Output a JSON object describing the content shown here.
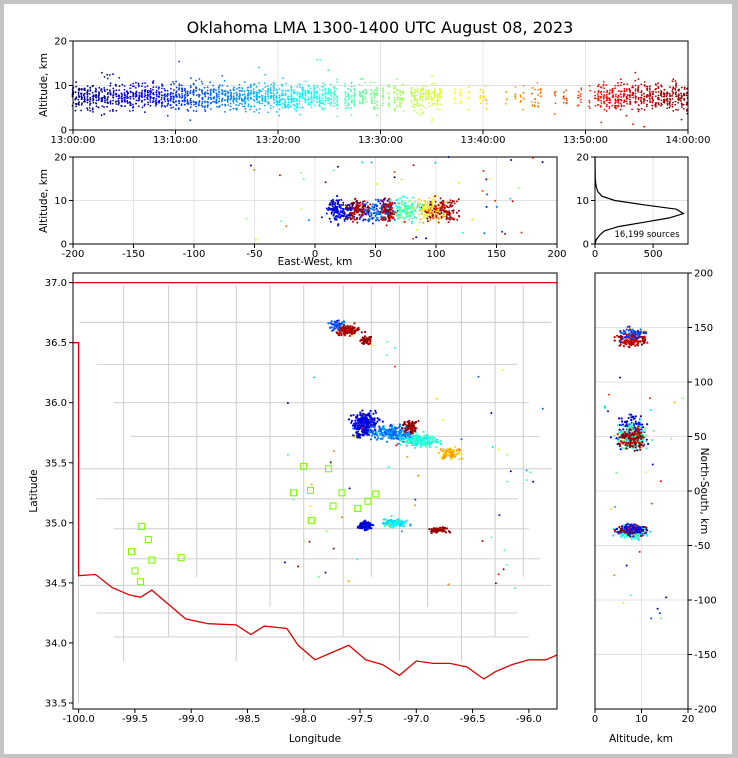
{
  "title": "Oklahoma LMA 1300-1400 UTC August 08, 2023",
  "colors": {
    "frame_border": "#c4c4c4",
    "state_border": "#e00000",
    "county_lines": "#c8c8c8",
    "station_marker": "#7cfc00",
    "grid": "#d8d8d8"
  },
  "chart_data": [
    {
      "id": "time_height",
      "type": "scatter",
      "ylabel": "Altitude, km",
      "xlabel": "",
      "xlim": [
        "13:00:00",
        "14:00:00"
      ],
      "ylim": [
        0,
        20
      ],
      "xticks": [
        "13:00:00",
        "13:10:00",
        "13:20:00",
        "13:30:00",
        "13:40:00",
        "13:50:00",
        "14:00:00"
      ],
      "yticks": [
        0,
        10,
        20
      ],
      "colormap": "jet by time",
      "note": "points colored by time of source"
    },
    {
      "id": "ew_altitude",
      "type": "scatter",
      "xlabel": "East-West, km",
      "ylabel": "Altitude, km",
      "xlim": [
        -200,
        200
      ],
      "ylim": [
        0,
        20
      ],
      "xticks": [
        -200,
        -150,
        -100,
        -50,
        0,
        50,
        100,
        150,
        200
      ],
      "yticks": [
        0,
        10,
        20
      ]
    },
    {
      "id": "altitude_histogram",
      "type": "line",
      "xlim": [
        0,
        800
      ],
      "ylim": [
        0,
        20
      ],
      "xticks": [
        0,
        500
      ],
      "yticks": [
        0,
        10,
        20
      ],
      "annotation": "16,199 sources",
      "x": [
        0,
        10,
        40,
        80,
        200,
        420,
        640,
        760,
        700,
        420,
        170,
        60,
        25,
        12,
        6,
        3,
        2,
        1,
        0
      ],
      "y": [
        0,
        1,
        2,
        3,
        4,
        5,
        6,
        7,
        8,
        9,
        10,
        11,
        12,
        13,
        14,
        15,
        16,
        18,
        20
      ]
    },
    {
      "id": "plan_view",
      "type": "scatter",
      "xlabel": "Longitude",
      "ylabel": "Latitude",
      "xlim": [
        -100.05,
        -95.75
      ],
      "ylim": [
        33.45,
        37.08
      ],
      "xticks": [
        "-100.0",
        "-99.5",
        "-99.0",
        "-98.5",
        "-98.0",
        "-97.5",
        "-97.0",
        "-96.5",
        "-96.0"
      ],
      "yticks": [
        "33.5",
        "34.0",
        "34.5",
        "35.0",
        "35.5",
        "36.0",
        "36.5",
        "37.0"
      ],
      "stations": [
        [
          -99.44,
          34.97
        ],
        [
          -99.38,
          34.86
        ],
        [
          -99.53,
          34.76
        ],
        [
          -99.35,
          34.69
        ],
        [
          -99.5,
          34.6
        ],
        [
          -99.45,
          34.51
        ],
        [
          -99.09,
          34.71
        ],
        [
          -98.0,
          35.47
        ],
        [
          -98.09,
          35.25
        ],
        [
          -97.94,
          35.27
        ],
        [
          -97.93,
          35.02
        ],
        [
          -97.78,
          35.45
        ],
        [
          -97.74,
          35.14
        ],
        [
          -97.66,
          35.25
        ],
        [
          -97.52,
          35.12
        ],
        [
          -97.43,
          35.18
        ],
        [
          -97.36,
          35.24
        ]
      ]
    },
    {
      "id": "ns_altitude",
      "type": "scatter",
      "xlabel": "Altitude, km",
      "ylabel": "North-South, km",
      "xlim": [
        0,
        20
      ],
      "ylim": [
        -200,
        200
      ],
      "xticks": [
        0,
        10,
        20
      ],
      "yticks": [
        -200,
        -150,
        -100,
        -50,
        0,
        50,
        100,
        150,
        200
      ]
    }
  ]
}
